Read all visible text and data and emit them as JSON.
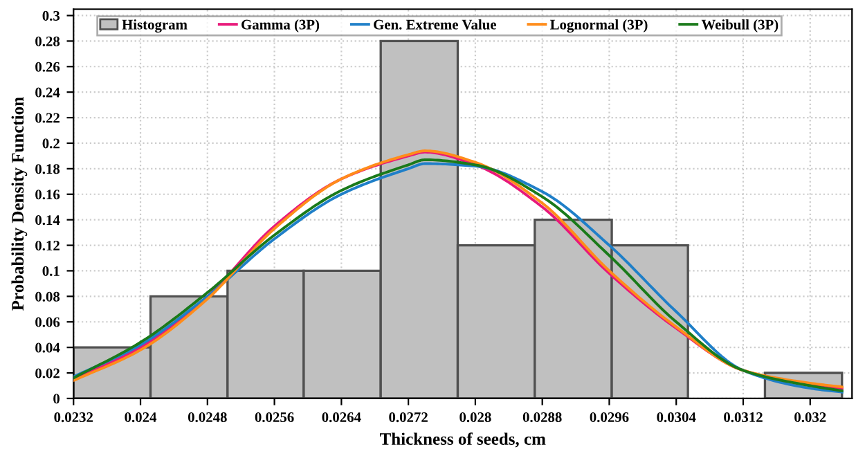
{
  "chart_data": {
    "type": "histogram",
    "xlabel": "Thickness of seeds, cm",
    "ylabel": "Probability Density Function",
    "xlim": [
      0.0232,
      0.0325
    ],
    "ylim": [
      0,
      0.305
    ],
    "xticks": [
      0.0232,
      0.024,
      0.0248,
      0.0256,
      0.0264,
      0.0272,
      0.028,
      0.0288,
      0.0296,
      0.0304,
      0.0312,
      0.032
    ],
    "yticks": [
      0,
      0.02,
      0.04,
      0.06,
      0.08,
      0.1,
      0.12,
      0.14,
      0.16,
      0.18,
      0.2,
      0.22,
      0.24,
      0.26,
      0.28,
      0.3
    ],
    "grid": true,
    "legend": "top",
    "series": [
      {
        "name": "Histogram",
        "color": "#c0c0c0",
        "bins": [
          0.0232,
          0.02412,
          0.02504,
          0.02595,
          0.02687,
          0.02779,
          0.02871,
          0.02963,
          0.03054,
          0.03146,
          0.03238
        ],
        "values": [
          0.04,
          0.08,
          0.1,
          0.1,
          0.28,
          0.12,
          0.14,
          0.12,
          0,
          0.02
        ]
      },
      {
        "type": "line",
        "name": "Gamma (3P)",
        "color": "#e8197a",
        "x": [
          0.0232,
          0.024,
          0.0248,
          0.0256,
          0.0264,
          0.0272,
          0.0274,
          0.028,
          0.0288,
          0.0296,
          0.0304,
          0.0312,
          0.032,
          0.03238
        ],
        "values": [
          0.015,
          0.04,
          0.08,
          0.135,
          0.172,
          0.19,
          0.193,
          0.183,
          0.15,
          0.098,
          0.055,
          0.022,
          0.011,
          0.008
        ]
      },
      {
        "type": "line",
        "name": "Gen. Extreme Value",
        "color": "#1f7fc8",
        "x": [
          0.0232,
          0.024,
          0.0248,
          0.0256,
          0.0264,
          0.0272,
          0.0274,
          0.028,
          0.0288,
          0.0296,
          0.0304,
          0.0312,
          0.032,
          0.03238
        ],
        "values": [
          0.017,
          0.042,
          0.08,
          0.125,
          0.16,
          0.18,
          0.184,
          0.182,
          0.162,
          0.12,
          0.068,
          0.022,
          0.008,
          0.005
        ]
      },
      {
        "type": "line",
        "name": "Lognormal (3P)",
        "color": "#ff8c1a",
        "x": [
          0.0232,
          0.024,
          0.0248,
          0.0256,
          0.0264,
          0.0272,
          0.0274,
          0.028,
          0.0288,
          0.0296,
          0.0304,
          0.0312,
          0.032,
          0.03238
        ],
        "values": [
          0.014,
          0.038,
          0.078,
          0.133,
          0.172,
          0.191,
          0.194,
          0.185,
          0.153,
          0.1,
          0.056,
          0.022,
          0.012,
          0.009
        ]
      },
      {
        "type": "line",
        "name": "Weibull (3P)",
        "color": "#1a7a1a",
        "x": [
          0.0232,
          0.024,
          0.0248,
          0.0256,
          0.0264,
          0.0272,
          0.0274,
          0.028,
          0.0288,
          0.0296,
          0.0304,
          0.0312,
          0.032,
          0.03238
        ],
        "values": [
          0.016,
          0.044,
          0.083,
          0.128,
          0.163,
          0.183,
          0.187,
          0.183,
          0.158,
          0.112,
          0.06,
          0.022,
          0.01,
          0.006
        ]
      }
    ]
  }
}
